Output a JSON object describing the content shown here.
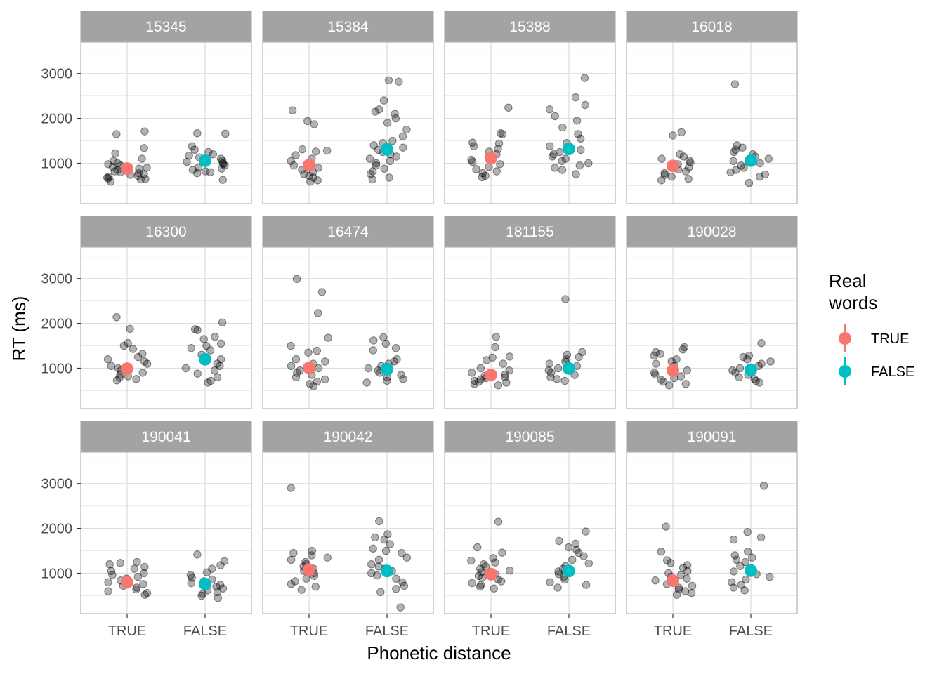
{
  "chart_data": {
    "type": "scatter",
    "xlabel": "Phonetic distance",
    "ylabel": "RT (ms)",
    "categories": [
      "TRUE",
      "FALSE"
    ],
    "ylim": [
      100,
      3700
    ],
    "yticks": [
      1000,
      2000,
      3000
    ],
    "grid": true,
    "legend": {
      "title": "Real words",
      "title_lines": [
        "Real",
        "words"
      ],
      "placement": "right",
      "entries": [
        {
          "label": "TRUE",
          "color": "#F8766D"
        },
        {
          "label": "FALSE",
          "color": "#00BFC4"
        }
      ]
    },
    "point_color": "#000000",
    "point_opacity": 0.3,
    "panels": [
      {
        "id": "15345",
        "means": [
          {
            "category": "TRUE",
            "value": 880
          },
          {
            "category": "FALSE",
            "value": 1055
          }
        ],
        "points": {
          "TRUE": [
            590,
            640,
            650,
            660,
            680,
            700,
            720,
            740,
            760,
            780,
            800,
            820,
            850,
            880,
            900,
            920,
            950,
            980,
            1000,
            1050,
            1100,
            1220,
            1340,
            1650,
            1710
          ],
          "FALSE": [
            630,
            780,
            800,
            820,
            850,
            880,
            900,
            950,
            980,
            1000,
            1030,
            1060,
            1100,
            1130,
            1170,
            1200,
            1250,
            1300,
            1380,
            1660,
            1670
          ]
        }
      },
      {
        "id": "15384",
        "means": [
          {
            "category": "TRUE",
            "value": 960
          },
          {
            "category": "FALSE",
            "value": 1310
          }
        ],
        "points": {
          "TRUE": [
            590,
            620,
            680,
            720,
            760,
            800,
            850,
            900,
            950,
            1000,
            1050,
            1100,
            1180,
            1260,
            1280,
            1310,
            1870,
            1940,
            2180
          ],
          "FALSE": [
            640,
            680,
            760,
            820,
            880,
            950,
            1000,
            1050,
            1100,
            1150,
            1200,
            1250,
            1300,
            1350,
            1400,
            1450,
            1500,
            1600,
            1750,
            1900,
            2000,
            2100,
            2150,
            2200,
            2400,
            2820,
            2850
          ]
        }
      },
      {
        "id": "15388",
        "means": [
          {
            "category": "TRUE",
            "value": 1110
          },
          {
            "category": "FALSE",
            "value": 1320
          }
        ],
        "points": {
          "TRUE": [
            690,
            720,
            780,
            820,
            870,
            920,
            980,
            1030,
            1080,
            1130,
            1200,
            1260,
            1320,
            1380,
            1440,
            1460,
            1650,
            1670,
            2240
          ],
          "FALSE": [
            760,
            850,
            900,
            950,
            1000,
            1050,
            1100,
            1150,
            1200,
            1250,
            1300,
            1380,
            1450,
            1550,
            1650,
            1800,
            1950,
            2050,
            2200,
            2300,
            2470,
            2900
          ]
        }
      },
      {
        "id": "16018",
        "means": [
          {
            "category": "TRUE",
            "value": 940
          },
          {
            "category": "FALSE",
            "value": 1060
          }
        ],
        "points": {
          "TRUE": [
            620,
            650,
            700,
            740,
            780,
            820,
            860,
            900,
            940,
            980,
            1020,
            1060,
            1100,
            1150,
            1200,
            1620,
            1690
          ],
          "FALSE": [
            560,
            700,
            750,
            800,
            850,
            900,
            950,
            1000,
            1050,
            1100,
            1150,
            1200,
            1250,
            1300,
            1350,
            1400,
            2760
          ]
        }
      },
      {
        "id": "16300",
        "means": [
          {
            "category": "TRUE",
            "value": 990
          },
          {
            "category": "FALSE",
            "value": 1200
          }
        ],
        "points": {
          "TRUE": [
            730,
            760,
            790,
            820,
            860,
            900,
            950,
            1000,
            1050,
            1100,
            1150,
            1200,
            1250,
            1320,
            1430,
            1500,
            1560,
            1880,
            2140
          ],
          "FALSE": [
            680,
            720,
            800,
            880,
            950,
            1000,
            1050,
            1100,
            1200,
            1300,
            1400,
            1450,
            1500,
            1550,
            1650,
            1700,
            1850,
            1870,
            2020
          ]
        }
      },
      {
        "id": "16474",
        "means": [
          {
            "category": "TRUE",
            "value": 1010
          },
          {
            "category": "FALSE",
            "value": 980
          }
        ],
        "points": {
          "TRUE": [
            600,
            650,
            700,
            750,
            800,
            850,
            900,
            950,
            1000,
            1050,
            1100,
            1150,
            1200,
            1350,
            1390,
            1500,
            1680,
            2230,
            2700,
            2990
          ],
          "FALSE": [
            680,
            720,
            760,
            800,
            850,
            900,
            950,
            1000,
            1050,
            1100,
            1150,
            1200,
            1400,
            1450,
            1550,
            1620,
            1690
          ]
        }
      },
      {
        "id": "181155",
        "means": [
          {
            "category": "TRUE",
            "value": 850
          },
          {
            "category": "FALSE",
            "value": 995
          }
        ],
        "points": {
          "TRUE": [
            620,
            650,
            680,
            700,
            720,
            750,
            780,
            800,
            830,
            860,
            900,
            950,
            1000,
            1100,
            1180,
            1240,
            1260,
            1470,
            1700
          ],
          "FALSE": [
            720,
            760,
            800,
            850,
            900,
            950,
            1000,
            1050,
            1100,
            1150,
            1200,
            1250,
            1300,
            1360,
            2540
          ]
        }
      },
      {
        "id": "190028",
        "means": [
          {
            "category": "TRUE",
            "value": 950
          },
          {
            "category": "FALSE",
            "value": 965
          }
        ],
        "points": {
          "TRUE": [
            620,
            650,
            700,
            740,
            780,
            820,
            860,
            900,
            950,
            1000,
            1050,
            1100,
            1150,
            1200,
            1280,
            1320,
            1360,
            1420,
            1470
          ],
          "FALSE": [
            680,
            720,
            760,
            800,
            850,
            900,
            950,
            1000,
            1050,
            1100,
            1150,
            1200,
            1250,
            1280,
            1560
          ]
        }
      },
      {
        "id": "190041",
        "means": [
          {
            "category": "TRUE",
            "value": 800
          },
          {
            "category": "FALSE",
            "value": 760
          }
        ],
        "points": {
          "TRUE": [
            520,
            560,
            600,
            640,
            680,
            720,
            760,
            800,
            840,
            880,
            920,
            960,
            1000,
            1050,
            1100,
            1140,
            1200,
            1230,
            1250
          ],
          "FALSE": [
            450,
            500,
            540,
            580,
            620,
            660,
            700,
            740,
            780,
            820,
            860,
            900,
            960,
            1020,
            1100,
            1180,
            1270,
            1420
          ]
        }
      },
      {
        "id": "190042",
        "means": [
          {
            "category": "TRUE",
            "value": 1080
          },
          {
            "category": "FALSE",
            "value": 1050
          }
        ],
        "points": {
          "TRUE": [
            630,
            700,
            760,
            820,
            880,
            940,
            1000,
            1050,
            1100,
            1150,
            1200,
            1250,
            1300,
            1350,
            1400,
            1450,
            1500,
            2900
          ],
          "FALSE": [
            240,
            580,
            650,
            720,
            800,
            880,
            950,
            1000,
            1050,
            1100,
            1150,
            1200,
            1300,
            1350,
            1450,
            1500,
            1550,
            1650,
            1750,
            1800,
            1870,
            2160
          ]
        }
      },
      {
        "id": "190085",
        "means": [
          {
            "category": "TRUE",
            "value": 980
          },
          {
            "category": "FALSE",
            "value": 1050
          }
        ],
        "points": {
          "TRUE": [
            660,
            700,
            740,
            780,
            820,
            860,
            900,
            940,
            980,
            1020,
            1060,
            1100,
            1150,
            1200,
            1240,
            1280,
            1340,
            1460,
            1580,
            2150
          ],
          "FALSE": [
            680,
            740,
            800,
            860,
            920,
            980,
            1040,
            1100,
            1160,
            1220,
            1300,
            1380,
            1450,
            1520,
            1580,
            1660,
            1720,
            1930
          ]
        }
      },
      {
        "id": "190091",
        "means": [
          {
            "category": "TRUE",
            "value": 835
          },
          {
            "category": "FALSE",
            "value": 1060
          }
        ],
        "points": {
          "TRUE": [
            520,
            560,
            600,
            640,
            680,
            720,
            760,
            800,
            840,
            880,
            920,
            960,
            1000,
            1050,
            1120,
            1180,
            1230,
            1290,
            1480,
            2040
          ],
          "FALSE": [
            620,
            680,
            740,
            800,
            860,
            920,
            980,
            1040,
            1100,
            1160,
            1250,
            1300,
            1350,
            1400,
            1480,
            1750,
            1800,
            1920,
            2950
          ]
        }
      }
    ]
  }
}
